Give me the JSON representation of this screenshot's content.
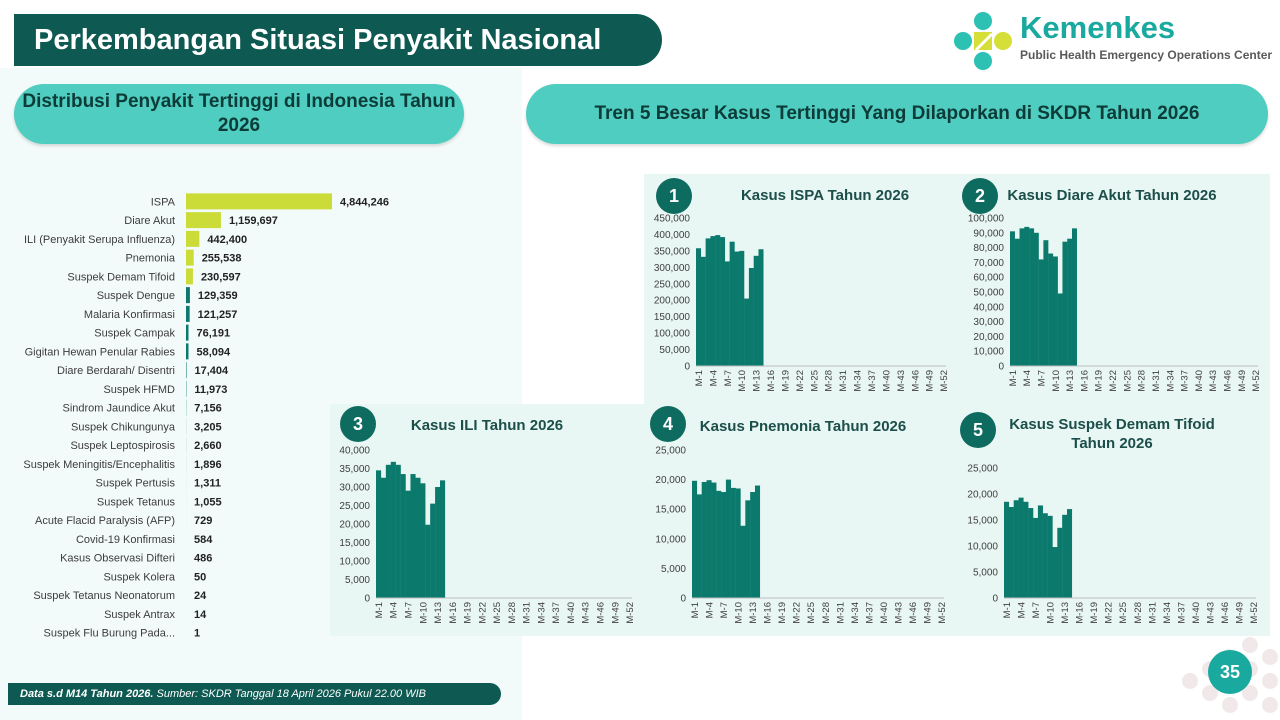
{
  "header": {
    "title": "Perkembangan Situasi Penyakit Nasional",
    "left_pill": "Distribusi Penyakit Tertinggi di Indonesia Tahun 2026",
    "right_pill": "Tren 5 Besar Kasus Tertinggi Yang Dilaporkan di SKDR Tahun 2026"
  },
  "logo": {
    "name": "Kemenkes",
    "subtitle": "Public Health Emergency Operations Center",
    "icon": "kemenkes-logo-icon"
  },
  "footer": {
    "bold": "Data s.d M14 Tahun 2026.",
    "text": " Sumber: SKDR Tanggal 18 April 2026 Pukul 22.00 WIB"
  },
  "page_number": "35",
  "colors": {
    "dark_teal": "#0e5a52",
    "pill_teal": "#4ecdc0",
    "bar_lime": "#cbdc38",
    "bar_teal": "#0b7a6c",
    "column_teal": "#0b7a6c"
  },
  "chart_data": [
    {
      "id": "distribution",
      "type": "bar",
      "orientation": "horizontal",
      "categories": [
        "ISPA",
        "Diare Akut",
        "ILI (Penyakit Serupa Influenza)",
        "Pnemonia",
        "Suspek Demam Tifoid",
        "Suspek Dengue",
        "Malaria Konfirmasi",
        "Suspek Campak",
        "Gigitan Hewan Penular Rabies",
        "Diare Berdarah/ Disentri",
        "Suspek HFMD",
        "Sindrom Jaundice Akut",
        "Suspek Chikungunya",
        "Suspek Leptospirosis",
        "Suspek Meningitis/Encephalitis",
        "Suspek Pertusis",
        "Suspek Tetanus",
        "Acute Flacid Paralysis (AFP)",
        "Covid-19 Konfirmasi",
        "Kasus Observasi Difteri",
        "Suspek Kolera",
        "Suspek Tetanus Neonatorum",
        "Suspek Antrax",
        "Suspek Flu Burung Pada..."
      ],
      "values": [
        4844246,
        1159697,
        442400,
        255538,
        230597,
        129359,
        121257,
        76191,
        58094,
        17404,
        11973,
        7156,
        3205,
        2660,
        1896,
        1311,
        1055,
        729,
        584,
        486,
        50,
        24,
        14,
        1
      ],
      "labels": [
        "4,844,246",
        "1,159,697",
        "442,400",
        "255,538",
        "230,597",
        "129,359",
        "121,257",
        "76,191",
        "58,094",
        "17,404",
        "11,973",
        "7,156",
        "3,205",
        "2,660",
        "1,896",
        "1,311",
        "1,055",
        "729",
        "584",
        "486",
        "50",
        "24",
        "14",
        "1"
      ],
      "highlight_top": 5
    },
    {
      "id": "ispa",
      "number": "1",
      "type": "bar",
      "title": "Kasus ISPA Tahun 2026",
      "x_labels": [
        "M-1",
        "M-4",
        "M-7",
        "M-10",
        "M-13",
        "M-16",
        "M-19",
        "M-22",
        "M-25",
        "M-28",
        "M-31",
        "M-34",
        "M-37",
        "M-40",
        "M-43",
        "M-46",
        "M-49",
        "M-52"
      ],
      "weeks_total": 52,
      "values": [
        358000,
        332000,
        388000,
        395000,
        398000,
        392000,
        318000,
        378000,
        348000,
        350000,
        205000,
        298000,
        335000,
        355000
      ],
      "yticks": [
        "0",
        "50,000",
        "100,000",
        "150,000",
        "200,000",
        "250,000",
        "300,000",
        "350,000",
        "400,000",
        "450,000"
      ],
      "ylim": [
        0,
        450000
      ]
    },
    {
      "id": "diare",
      "number": "2",
      "type": "bar",
      "title": "Kasus Diare Akut Tahun 2026",
      "x_labels": [
        "M-1",
        "M-4",
        "M-7",
        "M-10",
        "M-13",
        "M-16",
        "M-19",
        "M-22",
        "M-25",
        "M-28",
        "M-31",
        "M-34",
        "M-37",
        "M-40",
        "M-43",
        "M-46",
        "M-49",
        "M-52"
      ],
      "weeks_total": 52,
      "values": [
        91000,
        86000,
        93000,
        94000,
        93000,
        90000,
        72000,
        85000,
        76000,
        74000,
        49000,
        84000,
        86000,
        93000
      ],
      "yticks": [
        "0",
        "10,000",
        "20,000",
        "30,000",
        "40,000",
        "50,000",
        "60,000",
        "70,000",
        "80,000",
        "90,000",
        "100,000"
      ],
      "ylim": [
        0,
        100000
      ]
    },
    {
      "id": "ili",
      "number": "3",
      "type": "bar",
      "title": "Kasus ILI Tahun 2026",
      "x_labels": [
        "M-1",
        "M-4",
        "M-7",
        "M-10",
        "M-13",
        "M-16",
        "M-19",
        "M-22",
        "M-25",
        "M-28",
        "M-31",
        "M-34",
        "M-37",
        "M-40",
        "M-43",
        "M-46",
        "M-49",
        "M-52"
      ],
      "weeks_total": 52,
      "values": [
        34500,
        32500,
        36000,
        36800,
        36000,
        33500,
        29000,
        33500,
        32500,
        31000,
        19800,
        25500,
        30000,
        31800
      ],
      "yticks": [
        "0",
        "5,000",
        "10,000",
        "15,000",
        "20,000",
        "25,000",
        "30,000",
        "35,000",
        "40,000"
      ],
      "ylim": [
        0,
        40000
      ]
    },
    {
      "id": "pnemonia",
      "number": "4",
      "type": "bar",
      "title": "Kasus Pnemonia Tahun 2026",
      "x_labels": [
        "M-1",
        "M-4",
        "M-7",
        "M-10",
        "M-13",
        "M-16",
        "M-19",
        "M-22",
        "M-25",
        "M-28",
        "M-31",
        "M-34",
        "M-37",
        "M-40",
        "M-43",
        "M-46",
        "M-49",
        "M-52"
      ],
      "weeks_total": 52,
      "values": [
        19800,
        17500,
        19600,
        19900,
        19500,
        18100,
        17900,
        20000,
        18600,
        18500,
        12200,
        16500,
        17900,
        19000
      ],
      "yticks": [
        "0",
        "5,000",
        "10,000",
        "15,000",
        "20,000",
        "25,000"
      ],
      "ylim": [
        0,
        25000
      ]
    },
    {
      "id": "tifoid",
      "number": "5",
      "type": "bar",
      "title": "Kasus Suspek Demam Tifoid Tahun 2026",
      "x_labels": [
        "M-1",
        "M-4",
        "M-7",
        "M-10",
        "M-13",
        "M-16",
        "M-19",
        "M-22",
        "M-25",
        "M-28",
        "M-31",
        "M-34",
        "M-37",
        "M-40",
        "M-43",
        "M-46",
        "M-49",
        "M-52"
      ],
      "weeks_total": 52,
      "values": [
        18500,
        17500,
        18800,
        19300,
        18500,
        17300,
        15400,
        17800,
        16300,
        15800,
        9800,
        13500,
        16000,
        17100
      ],
      "yticks": [
        "0",
        "5,000",
        "10,000",
        "15,000",
        "20,000",
        "25,000"
      ],
      "ylim": [
        0,
        25000
      ]
    }
  ]
}
